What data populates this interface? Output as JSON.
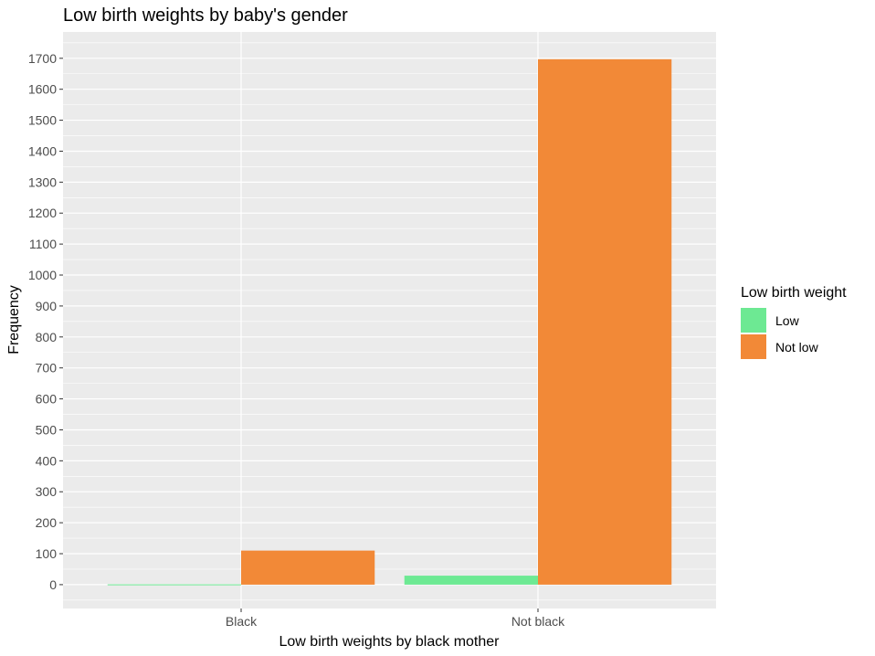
{
  "chart_data": {
    "type": "bar",
    "title": "Low birth weights by baby's gender",
    "xlabel": "Low birth weights by black mother",
    "ylabel": "Frequency",
    "categories": [
      "Black",
      "Not black"
    ],
    "series": [
      {
        "name": "Low",
        "values": [
          1,
          29
        ],
        "color": "#6DE993"
      },
      {
        "name": "Not low",
        "values": [
          110,
          1697
        ],
        "color": "#F28937"
      }
    ],
    "yticks": [
      0,
      100,
      200,
      300,
      400,
      500,
      600,
      700,
      800,
      900,
      1000,
      1100,
      1200,
      1300,
      1400,
      1500,
      1600,
      1700
    ],
    "ylim": [
      -77,
      1785
    ],
    "grid": true,
    "legend": {
      "title": "Low birth weight",
      "placement": "right"
    },
    "colors": {
      "panel_background": "#EBEBEB",
      "grid_line": "#FFFFFF",
      "tick_text": "#4D4D4D"
    }
  }
}
